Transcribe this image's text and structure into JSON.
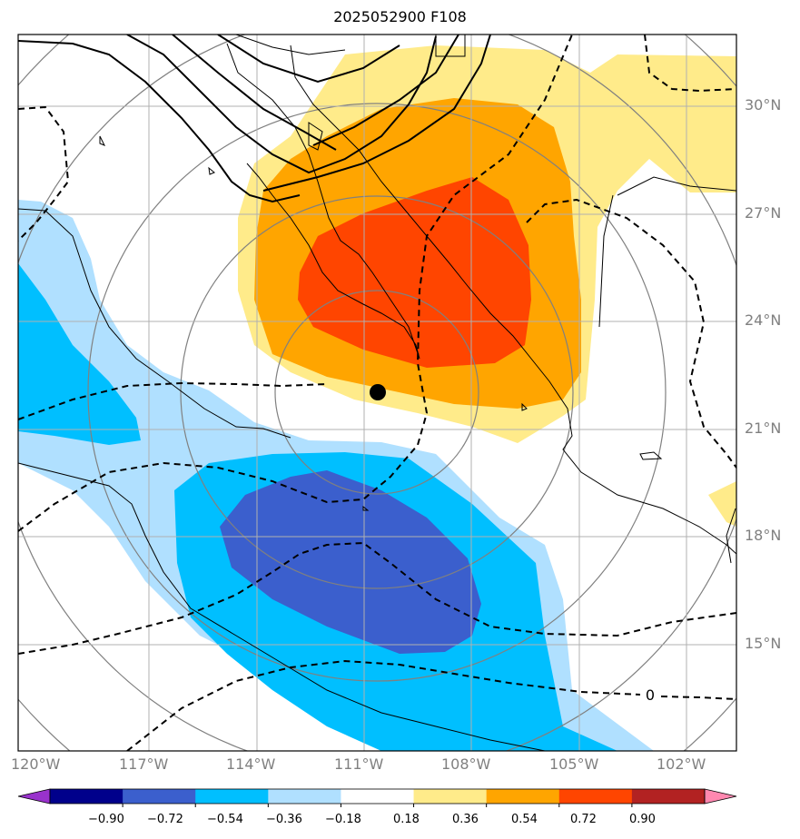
{
  "title": "2025052900 F108",
  "map": {
    "lon_labels": [
      "120°W",
      "117°W",
      "114°W",
      "111°W",
      "108°W",
      "105°W",
      "102°W"
    ],
    "lat_labels": [
      "30°N",
      "27°N",
      "24°N",
      "21°N",
      "18°N",
      "15°N"
    ],
    "contour_label": "0",
    "center_marker": "black-dot"
  },
  "colorbar": {
    "ticks": [
      "−0.90",
      "−0.72",
      "−0.54",
      "−0.36",
      "−0.18",
      "0.18",
      "0.36",
      "0.54",
      "0.72",
      "0.90"
    ],
    "colors": [
      "#9932cc",
      "#00008b",
      "#3b5fcd",
      "#00bfff",
      "#b0e0ff",
      "#ffffff",
      "#ffeb8a",
      "#ffa500",
      "#ff4500",
      "#b22222",
      "#ff88b0"
    ]
  }
}
